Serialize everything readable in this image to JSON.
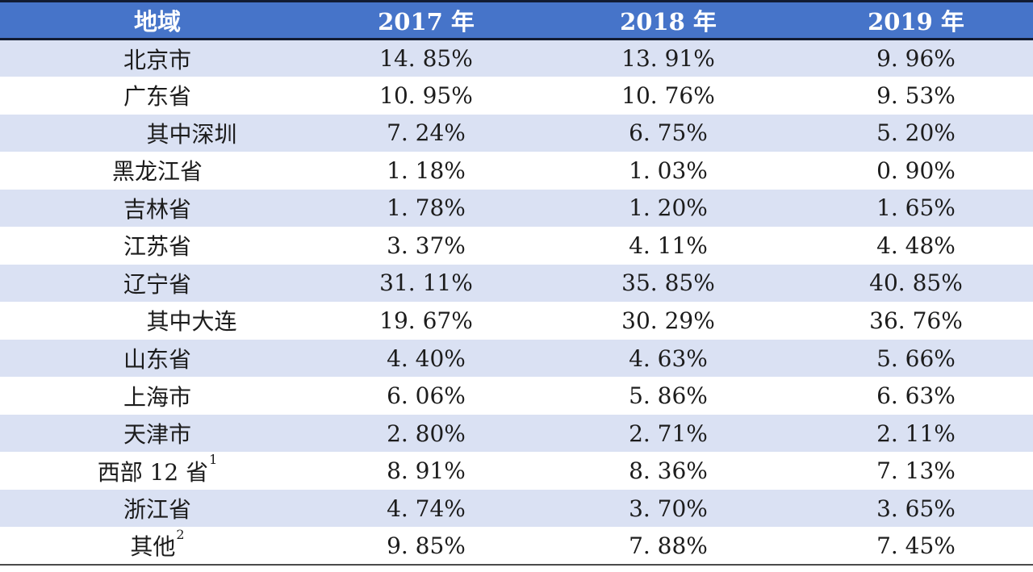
{
  "table": {
    "columns": [
      "地域",
      "2017 年",
      "2018 年",
      "2019 年"
    ],
    "rows": [
      {
        "region": "北京市",
        "sup": "",
        "indent": false,
        "values": [
          "14. 85%",
          "13. 91%",
          "9. 96%"
        ]
      },
      {
        "region": "广东省",
        "sup": "",
        "indent": false,
        "values": [
          "10. 95%",
          "10. 76%",
          "9. 53%"
        ]
      },
      {
        "region": "其中深圳",
        "sup": "",
        "indent": true,
        "values": [
          "7. 24%",
          "6. 75%",
          "5. 20%"
        ]
      },
      {
        "region": "黑龙江省",
        "sup": "",
        "indent": false,
        "values": [
          "1. 18%",
          "1. 03%",
          "0. 90%"
        ]
      },
      {
        "region": "吉林省",
        "sup": "",
        "indent": false,
        "values": [
          "1. 78%",
          "1. 20%",
          "1. 65%"
        ]
      },
      {
        "region": "江苏省",
        "sup": "",
        "indent": false,
        "values": [
          "3. 37%",
          "4. 11%",
          "4. 48%"
        ]
      },
      {
        "region": "辽宁省",
        "sup": "",
        "indent": false,
        "values": [
          "31. 11%",
          "35. 85%",
          "40. 85%"
        ]
      },
      {
        "region": "其中大连",
        "sup": "",
        "indent": true,
        "values": [
          "19. 67%",
          "30. 29%",
          "36. 76%"
        ]
      },
      {
        "region": "山东省",
        "sup": "",
        "indent": false,
        "values": [
          "4. 40%",
          "4. 63%",
          "5. 66%"
        ]
      },
      {
        "region": "上海市",
        "sup": "",
        "indent": false,
        "values": [
          "6. 06%",
          "5. 86%",
          "6. 63%"
        ]
      },
      {
        "region": "天津市",
        "sup": "",
        "indent": false,
        "values": [
          "2. 80%",
          "2. 71%",
          "2. 11%"
        ]
      },
      {
        "region": "西部 12 省",
        "sup": "1",
        "indent": false,
        "values": [
          "8. 91%",
          "8. 36%",
          "7. 13%"
        ]
      },
      {
        "region": "浙江省",
        "sup": "",
        "indent": false,
        "values": [
          "4. 74%",
          "3. 70%",
          "3. 65%"
        ]
      },
      {
        "region": "其他",
        "sup": "2",
        "indent": false,
        "values": [
          "9. 85%",
          "7. 88%",
          "7. 45%"
        ]
      }
    ],
    "colors": {
      "header_bg": "#4674C9",
      "header_text": "#FFFFFF",
      "band_bg": "#DAE1F3",
      "line_dark": "#121C33",
      "line_bottom": "#4A4A4A",
      "text_color": "#1C1C1C"
    }
  },
  "chart_data": {
    "type": "table",
    "columns": [
      "地域",
      "2017 年",
      "2018 年",
      "2019 年"
    ],
    "rows": [
      [
        "北京市",
        14.85,
        13.91,
        9.96
      ],
      [
        "广东省",
        10.95,
        10.76,
        9.53
      ],
      [
        "其中深圳",
        7.24,
        6.75,
        5.2
      ],
      [
        "黑龙江省",
        1.18,
        1.03,
        0.9
      ],
      [
        "吉林省",
        1.78,
        1.2,
        1.65
      ],
      [
        "江苏省",
        3.37,
        4.11,
        4.48
      ],
      [
        "辽宁省",
        31.11,
        35.85,
        40.85
      ],
      [
        "其中大连",
        19.67,
        30.29,
        36.76
      ],
      [
        "山东省",
        4.4,
        4.63,
        5.66
      ],
      [
        "上海市",
        6.06,
        5.86,
        6.63
      ],
      [
        "天津市",
        2.8,
        2.71,
        2.11
      ],
      [
        "西部 12 省 (注1)",
        8.91,
        8.36,
        7.13
      ],
      [
        "浙江省",
        4.74,
        3.7,
        3.65
      ],
      [
        "其他 (注2)",
        9.85,
        7.88,
        7.45
      ]
    ],
    "unit": "percent"
  }
}
